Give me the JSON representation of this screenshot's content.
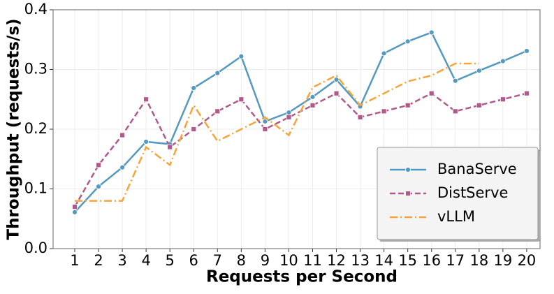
{
  "chart_data": {
    "type": "line",
    "xlabel": "Requests per Second",
    "ylabel": "Throughput (requests/s)",
    "x": [
      1,
      2,
      3,
      4,
      5,
      6,
      7,
      8,
      9,
      10,
      11,
      12,
      13,
      14,
      15,
      16,
      17,
      18,
      19,
      20
    ],
    "series": [
      {
        "name": "BanaServe",
        "color": "#5499bf",
        "marker": "circle",
        "dash": "solid",
        "values": [
          0.061,
          0.104,
          0.136,
          0.179,
          0.175,
          0.269,
          0.294,
          0.322,
          0.213,
          0.228,
          0.254,
          0.283,
          0.238,
          0.327,
          0.347,
          0.362,
          0.281,
          0.298,
          0.314,
          0.331
        ]
      },
      {
        "name": "DistServe",
        "color": "#b05a8c",
        "marker": "square",
        "dash": "dashed",
        "values": [
          0.07,
          0.14,
          0.19,
          0.25,
          0.17,
          0.2,
          0.23,
          0.25,
          0.2,
          0.22,
          0.24,
          0.26,
          0.22,
          0.23,
          0.24,
          0.26,
          0.23,
          0.24,
          0.25,
          0.26
        ]
      },
      {
        "name": "vLLM",
        "color": "#f5a53a",
        "marker": "none",
        "dash": "dashdot",
        "values": [
          0.08,
          0.08,
          0.08,
          0.17,
          0.14,
          0.24,
          0.18,
          0.2,
          0.22,
          0.19,
          0.27,
          0.29,
          0.24,
          0.26,
          0.28,
          0.29,
          0.31,
          0.31,
          null,
          null
        ]
      }
    ],
    "xlim": [
      0.09,
      20.56
    ],
    "xticks": [
      1,
      2,
      3,
      4,
      5,
      6,
      7,
      8,
      9,
      10,
      11,
      12,
      13,
      14,
      15,
      16,
      17,
      18,
      19,
      20
    ],
    "ylim": [
      0,
      0.4
    ],
    "yticks": [
      {
        "value": 0,
        "label": "0.0"
      },
      0.1,
      0.2,
      0.3,
      0.4
    ],
    "grid": true,
    "legend": "lower right"
  }
}
